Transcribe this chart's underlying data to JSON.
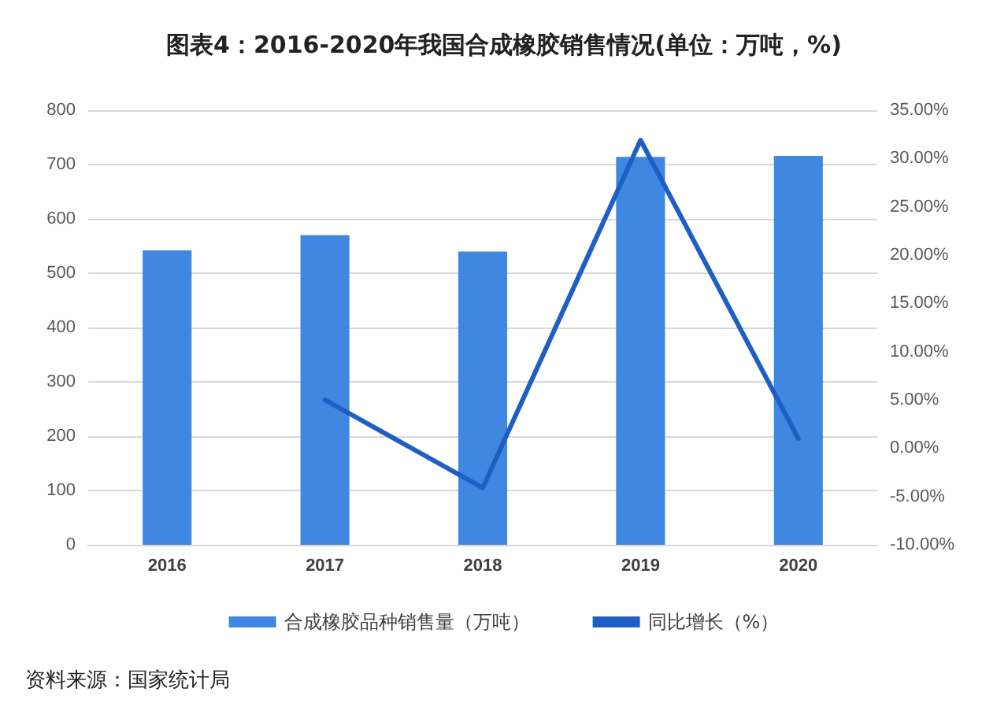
{
  "chart_data": {
    "type": "bar",
    "title": "图表4：2016-2020年我国合成橡胶销售情况(单位：万吨，%)",
    "categories": [
      "2016",
      "2017",
      "2018",
      "2019",
      "2020"
    ],
    "series": [
      {
        "name": "合成橡胶品种销售量（万吨）",
        "color": "#3f87e0",
        "values": [
          542,
          570,
          540,
          714,
          716
        ]
      },
      {
        "name": "同比增长（%）",
        "type": "line",
        "axis": "y2",
        "color": "#1f5fc4",
        "values": [
          null,
          5.0,
          -4.1,
          31.9,
          1.0
        ]
      }
    ],
    "ylim": [
      0,
      800
    ],
    "yticks": [
      0,
      100,
      200,
      300,
      400,
      500,
      600,
      700,
      800
    ],
    "y2lim": [
      -10,
      35
    ],
    "y2ticks": [
      {
        "value": -10,
        "label": "-10.00%"
      },
      {
        "value": -5,
        "label": "-5.00%"
      },
      {
        "value": 0,
        "label": "0.00%"
      },
      {
        "value": 5,
        "label": "5.00%"
      },
      {
        "value": 10,
        "label": "10.00%"
      },
      {
        "value": 15,
        "label": "15.00%"
      },
      {
        "value": 20,
        "label": "20.00%"
      },
      {
        "value": 25,
        "label": "25.00%"
      },
      {
        "value": 30,
        "label": "30.00%"
      },
      {
        "value": 35,
        "label": "35.00%"
      }
    ],
    "grid": "y",
    "legend": "bottom",
    "marker": "none",
    "line_style": "solid",
    "annotations": [
      "资料来源：国家统计局"
    ]
  }
}
